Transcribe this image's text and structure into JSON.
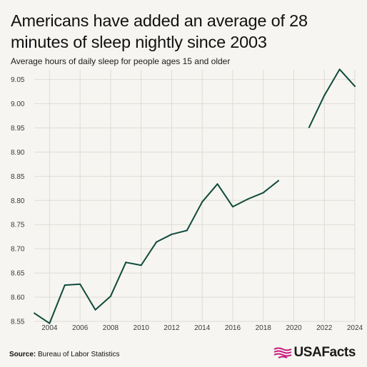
{
  "header": {
    "title": "Americans have added an average of 28 minutes of sleep nightly since 2003",
    "subtitle": "Average hours of daily sleep for people ages 15 and older"
  },
  "footer": {
    "source_label": "Source:",
    "source_text": "Bureau of Labor Statistics",
    "brand": "USAFacts"
  },
  "colors": {
    "line": "#0f4a3c",
    "grid": "#dddcd6",
    "background": "#f6f5f1",
    "brand_flag": "#c6197f"
  },
  "chart_data": {
    "type": "line",
    "title": "Americans have added an average of 28 minutes of sleep nightly since 2003",
    "subtitle": "Average hours of daily sleep for people ages 15 and older",
    "xlabel": "",
    "ylabel": "",
    "grid": true,
    "xlim": [
      2003,
      2024
    ],
    "ylim": [
      8.55,
      9.07
    ],
    "x_ticks": [
      2004,
      2006,
      2008,
      2010,
      2012,
      2014,
      2016,
      2018,
      2020,
      2022,
      2024
    ],
    "y_ticks": [
      8.55,
      8.6,
      8.65,
      8.7,
      8.75,
      8.8,
      8.85,
      8.9,
      8.95,
      9.0,
      9.05
    ],
    "y_tick_labels": [
      "8.55",
      "8.60",
      "8.65",
      "8.70",
      "8.75",
      "8.80",
      "8.85",
      "8.90",
      "8.95",
      "9.00",
      "9.05"
    ],
    "x_tick_labels": [
      "2004",
      "2006",
      "2008",
      "2010",
      "2012",
      "2014",
      "2016",
      "2018",
      "2020",
      "2022",
      "2024"
    ],
    "series": [
      {
        "segments": [
          {
            "x": [
              2003,
              2004,
              2005,
              2006,
              2007,
              2008,
              2009,
              2010,
              2011,
              2012,
              2013,
              2014,
              2015,
              2016,
              2017,
              2018,
              2019
            ],
            "y": [
              8.567,
              8.546,
              8.625,
              8.627,
              8.574,
              8.602,
              8.672,
              8.666,
              8.714,
              8.73,
              8.738,
              8.797,
              8.834,
              8.787,
              8.803,
              8.816,
              8.841
            ]
          },
          {
            "x": [
              2021,
              2022,
              2023,
              2024
            ],
            "y": [
              8.951,
              9.017,
              9.071,
              9.036
            ]
          }
        ]
      }
    ]
  }
}
